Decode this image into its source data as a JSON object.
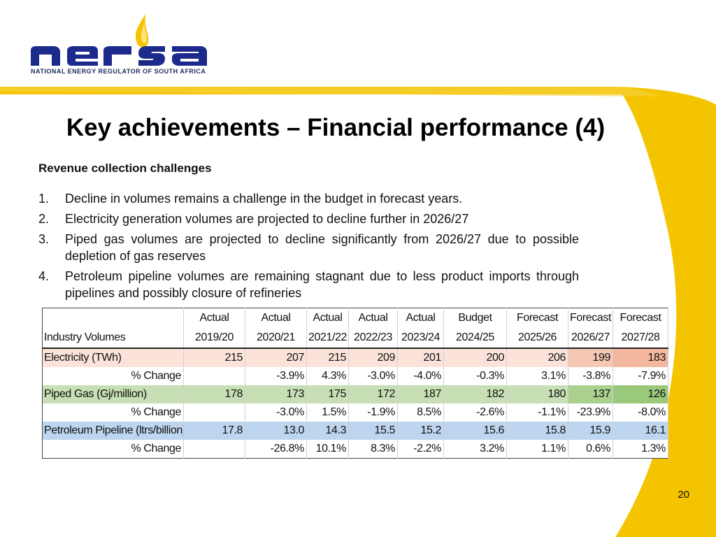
{
  "logo": {
    "wordmark": "nersa",
    "subtitle": "NATIONAL ENERGY REGULATOR OF SOUTH AFRICA"
  },
  "colors": {
    "brand_navy": "#1c2a8c",
    "brand_yellow": "#f5c400",
    "electricity_row": "#fce3da",
    "gas_row": "#c8dfb5",
    "petroleum_row": "#bdd5ee"
  },
  "title": "Key achievements – Financial performance (4)",
  "subheading": "Revenue collection challenges",
  "points": [
    {
      "num": "1.",
      "text": "Decline in volumes remains a challenge in the budget in forecast years."
    },
    {
      "num": "2.",
      "text": "Electricity generation volumes are projected to decline further in 2026/27"
    },
    {
      "num": "3.",
      "text": "Piped gas volumes are projected to decline significantly from 2026/27 due to possible depletion of gas reserves"
    },
    {
      "num": "4.",
      "text": "Petroleum pipeline volumes are remaining stagnant due to less product imports through pipelines and possibly closure of refineries"
    }
  ],
  "table": {
    "header_label": "Industry Volumes",
    "columns": [
      {
        "top": "Actual",
        "bottom": "2019/20"
      },
      {
        "top": "Actual",
        "bottom": "2020/21"
      },
      {
        "top": "Actual",
        "bottom": "2021/22"
      },
      {
        "top": "Actual",
        "bottom": "2022/23"
      },
      {
        "top": "Actual",
        "bottom": "2023/24"
      },
      {
        "top": "Budget",
        "bottom": "2024/25"
      },
      {
        "top": "Forecast",
        "bottom": "2025/26"
      },
      {
        "top": "Forecast",
        "bottom": "2026/27"
      },
      {
        "top": "Forecast",
        "bottom": "2027/28"
      }
    ],
    "rows": [
      {
        "label": "Electricity (TWh)",
        "values": [
          "215",
          "207",
          "215",
          "209",
          "201",
          "200",
          "206",
          "199",
          "183"
        ]
      },
      {
        "label": "% Change",
        "values": [
          "",
          "-3.9%",
          "4.3%",
          "-3.0%",
          "-4.0%",
          "-0.3%",
          "3.1%",
          "-3.8%",
          "-7.9%"
        ]
      },
      {
        "label": "Piped Gas (Gj/million)",
        "values": [
          "178",
          "173",
          "175",
          "172",
          "187",
          "182",
          "180",
          "137",
          "126"
        ]
      },
      {
        "label": "% Change",
        "values": [
          "",
          "-3.0%",
          "1.5%",
          "-1.9%",
          "8.5%",
          "-2.6%",
          "-1.1%",
          "-23.9%",
          "-8.0%"
        ]
      },
      {
        "label": "Petroleum Pipeline (ltrs/billion)",
        "values": [
          "17.8",
          "13.0",
          "14.3",
          "15.5",
          "15.2",
          "15.6",
          "15.8",
          "15.9",
          "16.1"
        ]
      },
      {
        "label": "% Change",
        "values": [
          "",
          "-26.8%",
          "10.1%",
          "8.3%",
          "-2.2%",
          "3.2%",
          "1.1%",
          "0.6%",
          "1.3%"
        ]
      }
    ]
  },
  "page_number": "20"
}
